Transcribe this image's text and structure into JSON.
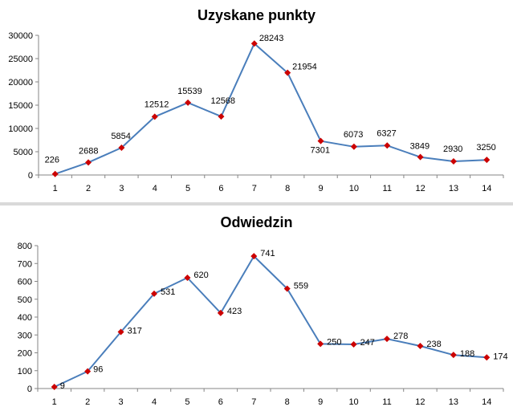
{
  "chart_data": [
    {
      "type": "line",
      "title": "Uzyskane punkty",
      "xlabel": "",
      "ylabel": "",
      "ylim": [
        0,
        30000
      ],
      "yticks": [
        "0",
        "5000",
        "10000",
        "15000",
        "20000",
        "25000",
        "30000"
      ],
      "x": [
        "1",
        "2",
        "3",
        "4",
        "5",
        "6",
        "7",
        "8",
        "9",
        "10",
        "11",
        "12",
        "13",
        "14"
      ],
      "series": [
        {
          "values": [
            226,
            2688,
            5854,
            12512,
            15539,
            12568,
            28243,
            21954,
            7301,
            6073,
            6327,
            3849,
            2930,
            3250
          ],
          "labels": [
            "226",
            "2688",
            "5854",
            "12512",
            "15539",
            "12568",
            "28243",
            "21954",
            "7301",
            "6073",
            "6327",
            "3849",
            "2930",
            "3250"
          ],
          "line_color": "#4a7ebb",
          "marker_color": "#cc0000",
          "marker": "diamond"
        }
      ],
      "grid": false,
      "legend": "none"
    },
    {
      "type": "line",
      "title": "Odwiedzin",
      "xlabel": "",
      "ylabel": "",
      "ylim": [
        0,
        800
      ],
      "yticks": [
        "0",
        "100",
        "200",
        "300",
        "400",
        "500",
        "600",
        "700",
        "800"
      ],
      "x": [
        "1",
        "2",
        "3",
        "4",
        "5",
        "6",
        "7",
        "8",
        "9",
        "10",
        "11",
        "12",
        "13",
        "14"
      ],
      "series": [
        {
          "values": [
            9,
            96,
            317,
            531,
            620,
            423,
            741,
            559,
            250,
            247,
            278,
            238,
            188,
            174
          ],
          "labels": [
            "9",
            "96",
            "317",
            "531",
            "620",
            "423",
            "741",
            "559",
            "250",
            "247",
            "278",
            "238",
            "188",
            "174"
          ],
          "line_color": "#4a7ebb",
          "marker_color": "#cc0000",
          "marker": "diamond"
        }
      ],
      "grid": false,
      "legend": "none"
    }
  ]
}
